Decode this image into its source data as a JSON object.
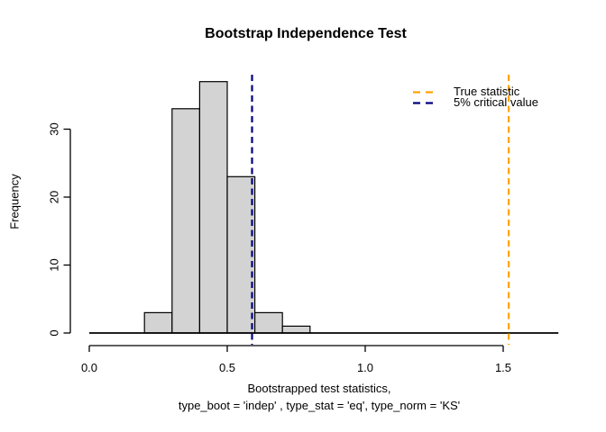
{
  "chart_data": {
    "type": "histogram",
    "title": "Bootstrap Independence Test",
    "ylabel": "Frequency",
    "xlabel_line1": "Bootstrapped test statistics,",
    "xlabel_line2": "type_boot = 'indep' , type_stat = 'eq', type_norm = 'KS'",
    "bins": {
      "start": 0.2,
      "width": 0.1,
      "counts": [
        3,
        33,
        37,
        23,
        3,
        1
      ]
    },
    "bar_fill": "#d3d3d3",
    "bar_stroke": "#000000",
    "x_ticks": [
      0,
      0.5,
      1,
      1.5
    ],
    "x_tick_labels": [
      "0.0",
      "0.5",
      "1.0",
      "1.5"
    ],
    "y_ticks": [
      0,
      10,
      20,
      30
    ],
    "y_tick_labels": [
      "0",
      "10",
      "20",
      "30"
    ],
    "xlim": [
      0,
      1.7
    ],
    "ylim": [
      0,
      37
    ],
    "grid": false,
    "baseline": {
      "y": 0,
      "x_start": 0,
      "x_end": 1.7
    },
    "vlines": [
      {
        "name": "true-statistic",
        "x": 1.52,
        "color": "#ffa500",
        "style": "dashed"
      },
      {
        "name": "critical-value",
        "x": 0.59,
        "color": "#000080",
        "style": "dashed"
      }
    ],
    "legend": {
      "position": "top-right",
      "items": [
        {
          "label": "True statistic",
          "color": "#ffa500"
        },
        {
          "label": "5% critical value",
          "color": "#000080"
        }
      ]
    }
  }
}
